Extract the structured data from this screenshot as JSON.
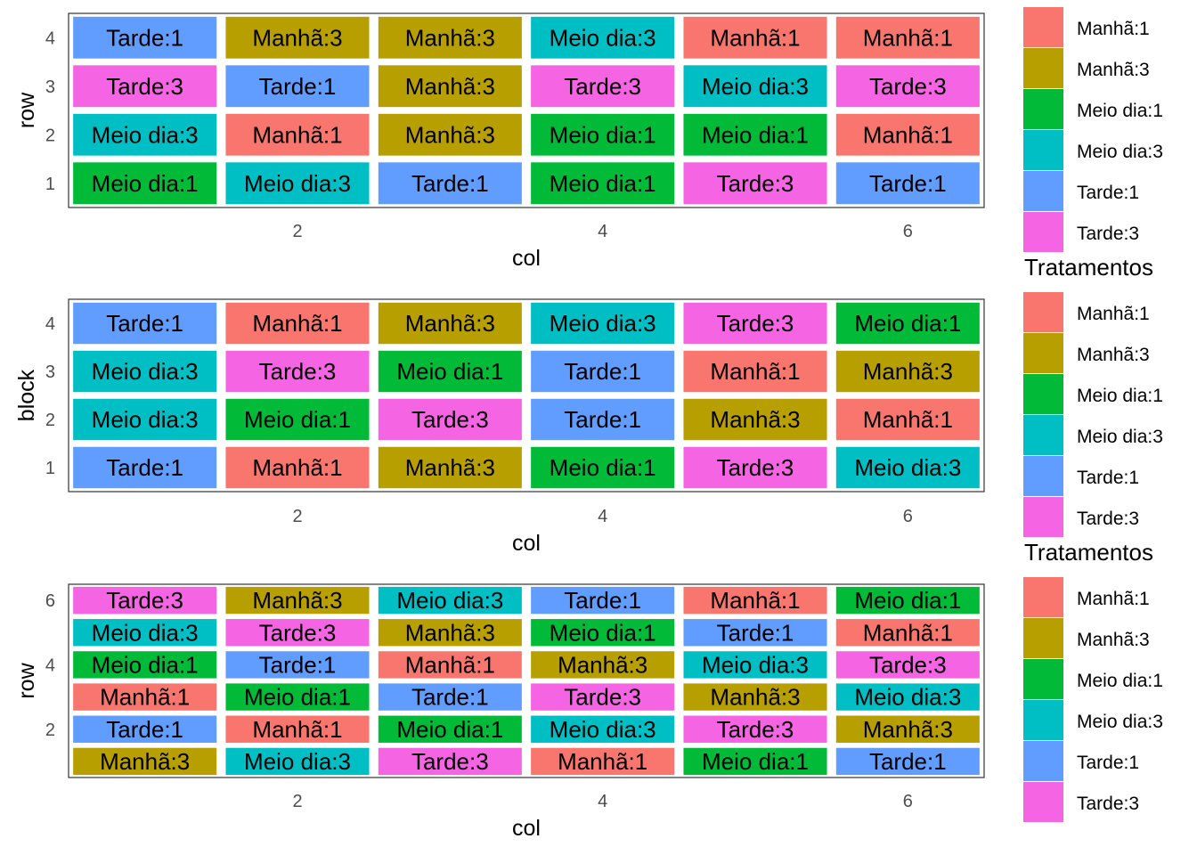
{
  "colors": {
    "Manhã:1": "#F8766D",
    "Manhã:3": "#B79F00",
    "Meio dia:1": "#00BA38",
    "Meio dia:3": "#00BFC4",
    "Tarde:1": "#619CFF",
    "Tarde:3": "#F564E3"
  },
  "chart_data": [
    {
      "type": "heatmap",
      "xlabel": "col",
      "ylabel": "row",
      "x_ticks": [
        2,
        4,
        6
      ],
      "y_ticks": [
        1,
        2,
        3,
        4
      ],
      "xlim": [
        0.5,
        6.5
      ],
      "ylim": [
        0.5,
        4.5
      ],
      "rows": 4,
      "cols": 6,
      "cells": [
        [
          "Meio dia:1",
          "Meio dia:3",
          "Tarde:1",
          "Meio dia:1",
          "Tarde:3",
          "Tarde:1"
        ],
        [
          "Meio dia:3",
          "Manhã:1",
          "Manhã:3",
          "Meio dia:1",
          "Meio dia:1",
          "Manhã:1"
        ],
        [
          "Tarde:3",
          "Tarde:1",
          "Manhã:3",
          "Tarde:3",
          "Meio dia:3",
          "Tarde:3"
        ],
        [
          "Tarde:1",
          "Manhã:3",
          "Manhã:3",
          "Meio dia:3",
          "Manhã:1",
          "Manhã:1"
        ]
      ],
      "legend_title": "",
      "legend": [
        "Manhã:1",
        "Manhã:3",
        "Meio dia:1",
        "Meio dia:3",
        "Tarde:1",
        "Tarde:3"
      ]
    },
    {
      "type": "heatmap",
      "xlabel": "col",
      "ylabel": "block",
      "x_ticks": [
        2,
        4,
        6
      ],
      "y_ticks": [
        1,
        2,
        3,
        4
      ],
      "xlim": [
        0.5,
        6.5
      ],
      "ylim": [
        0.5,
        4.5
      ],
      "rows": 4,
      "cols": 6,
      "cells": [
        [
          "Tarde:1",
          "Manhã:1",
          "Manhã:3",
          "Meio dia:1",
          "Tarde:3",
          "Meio dia:3"
        ],
        [
          "Meio dia:3",
          "Meio dia:1",
          "Tarde:3",
          "Tarde:1",
          "Manhã:3",
          "Manhã:1"
        ],
        [
          "Meio dia:3",
          "Tarde:3",
          "Meio dia:1",
          "Tarde:1",
          "Manhã:1",
          "Manhã:3"
        ],
        [
          "Tarde:1",
          "Manhã:1",
          "Manhã:3",
          "Meio dia:3",
          "Tarde:3",
          "Meio dia:1"
        ]
      ],
      "legend_title": "Tratamentos",
      "legend": [
        "Manhã:1",
        "Manhã:3",
        "Meio dia:1",
        "Meio dia:3",
        "Tarde:1",
        "Tarde:3"
      ]
    },
    {
      "type": "heatmap",
      "xlabel": "col",
      "ylabel": "row",
      "x_ticks": [
        2,
        4,
        6
      ],
      "y_ticks": [
        2,
        4,
        6
      ],
      "xlim": [
        0.5,
        6.5
      ],
      "ylim": [
        0.5,
        6.5
      ],
      "rows": 6,
      "cols": 6,
      "cells": [
        [
          "Manhã:3",
          "Meio dia:3",
          "Tarde:3",
          "Manhã:1",
          "Meio dia:1",
          "Tarde:1"
        ],
        [
          "Tarde:1",
          "Manhã:1",
          "Meio dia:1",
          "Meio dia:3",
          "Tarde:3",
          "Manhã:3"
        ],
        [
          "Manhã:1",
          "Meio dia:1",
          "Tarde:1",
          "Tarde:3",
          "Manhã:3",
          "Meio dia:3"
        ],
        [
          "Meio dia:1",
          "Tarde:1",
          "Manhã:1",
          "Manhã:3",
          "Meio dia:3",
          "Tarde:3"
        ],
        [
          "Meio dia:3",
          "Tarde:3",
          "Manhã:3",
          "Meio dia:1",
          "Tarde:1",
          "Manhã:1"
        ],
        [
          "Tarde:3",
          "Manhã:3",
          "Meio dia:3",
          "Tarde:1",
          "Manhã:1",
          "Meio dia:1"
        ]
      ],
      "legend_title": "Tratamentos",
      "legend": [
        "Manhã:1",
        "Manhã:3",
        "Meio dia:1",
        "Meio dia:3",
        "Tarde:1",
        "Tarde:3"
      ]
    }
  ]
}
